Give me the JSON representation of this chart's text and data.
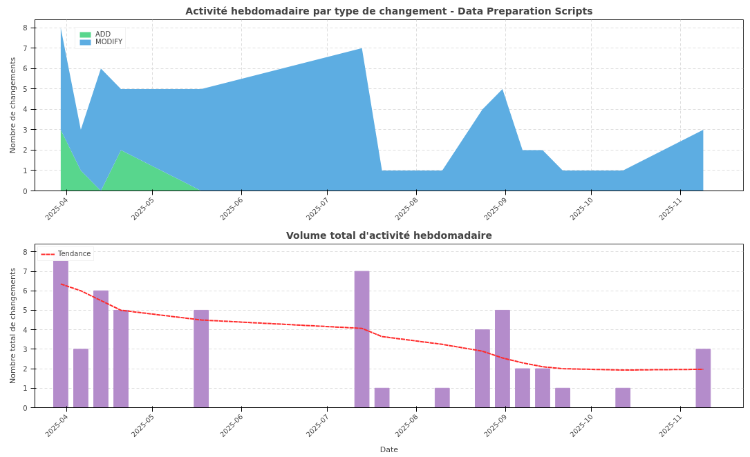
{
  "chart_data": [
    {
      "type": "area",
      "title": "Activité hebdomadaire par type de changement - Data Preparation Scripts",
      "ylabel": "Nombre de changements",
      "stacked": true,
      "x": [
        "2025-03-30",
        "2025-04-06",
        "2025-04-13",
        "2025-04-20",
        "2025-05-18",
        "2025-07-13",
        "2025-07-20",
        "2025-08-10",
        "2025-08-24",
        "2025-08-31",
        "2025-09-07",
        "2025-09-14",
        "2025-09-21",
        "2025-10-12",
        "2025-11-09"
      ],
      "series": [
        {
          "name": "ADD",
          "color": "#58d68d",
          "values": [
            3,
            1,
            0,
            2,
            0,
            0,
            0,
            0,
            0,
            0,
            0,
            0,
            0,
            0,
            0
          ]
        },
        {
          "name": "MODIFY",
          "color": "#5dade2",
          "values": [
            5,
            2,
            6,
            3,
            5,
            7,
            1,
            1,
            4,
            5,
            2,
            2,
            1,
            1,
            3
          ]
        }
      ],
      "xlim": [
        "2025-03-21",
        "2025-11-23"
      ],
      "xticks": [
        "2025-04",
        "2025-05",
        "2025-06",
        "2025-07",
        "2025-08",
        "2025-09",
        "2025-10",
        "2025-11"
      ],
      "ylim": [
        0,
        8.4
      ],
      "yticks": [
        0,
        1,
        2,
        3,
        4,
        5,
        6,
        7,
        8
      ],
      "grid": true,
      "legend": "top left"
    },
    {
      "type": "bar",
      "title": "Volume total d'activité hebdomadaire",
      "xlabel": "Date",
      "ylabel": "Nombre total de changements",
      "x": [
        "2025-03-30",
        "2025-04-06",
        "2025-04-13",
        "2025-04-20",
        "2025-05-18",
        "2025-07-13",
        "2025-07-20",
        "2025-08-10",
        "2025-08-24",
        "2025-08-31",
        "2025-09-07",
        "2025-09-14",
        "2025-09-21",
        "2025-10-12",
        "2025-11-09"
      ],
      "series": [
        {
          "color": "#b48ccb",
          "values": [
            8,
            3,
            6,
            5,
            5,
            7,
            1,
            1,
            4,
            5,
            2,
            2,
            1,
            1,
            3
          ]
        },
        {
          "name": "Tendance",
          "type": "line",
          "line_style": "dashed",
          "color": "#ff2a2a",
          "values": [
            6.35,
            6.0,
            5.5,
            5.0,
            4.5,
            4.07,
            3.65,
            3.25,
            2.9,
            2.55,
            2.3,
            2.1,
            2.0,
            1.93,
            1.97
          ]
        }
      ],
      "xlim": [
        "2025-03-21",
        "2025-11-23"
      ],
      "xticks": [
        "2025-04",
        "2025-05",
        "2025-06",
        "2025-07",
        "2025-08",
        "2025-09",
        "2025-10",
        "2025-11"
      ],
      "ylim": [
        0,
        8.4
      ],
      "yticks": [
        0,
        1,
        2,
        3,
        4,
        5,
        6,
        7,
        8
      ],
      "grid": "y",
      "legend": "top left"
    }
  ]
}
